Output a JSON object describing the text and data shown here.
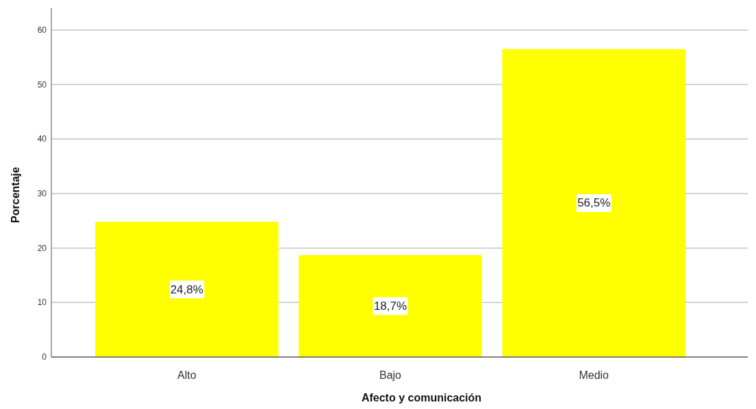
{
  "chart_data": {
    "type": "bar",
    "xlabel": "Afecto y comunicación",
    "ylabel": "Porcentaje",
    "categories": [
      "Alto",
      "Bajo",
      "Medio"
    ],
    "values": [
      24.8,
      18.7,
      56.5
    ],
    "value_labels": [
      "24,8%",
      "18,7%",
      "56,5%"
    ],
    "color": "#ffff00",
    "ylim": [
      0,
      64
    ],
    "yticks": [
      0,
      10,
      20,
      30,
      40,
      50,
      60
    ],
    "grid": "y"
  }
}
